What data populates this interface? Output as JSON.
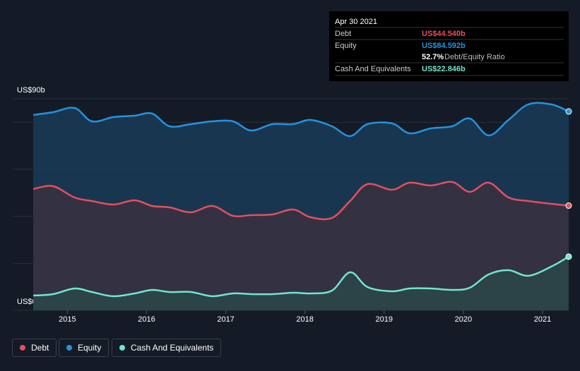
{
  "chart_data": {
    "type": "area",
    "x": [
      2014.57,
      2014.82,
      2015.09,
      2015.31,
      2015.58,
      2015.85,
      2016.07,
      2016.29,
      2016.56,
      2016.83,
      2017.09,
      2017.32,
      2017.59,
      2017.85,
      2018.07,
      2018.34,
      2018.57,
      2018.79,
      2019.1,
      2019.32,
      2019.59,
      2019.86,
      2020.08,
      2020.32,
      2020.57,
      2020.82,
      2021.11,
      2021.33
    ],
    "series": [
      {
        "name": "Equity",
        "color": "#2394df",
        "fill": "#1a3b58",
        "values": [
          83.1,
          84.3,
          86.1,
          80.4,
          82.2,
          82.8,
          83.7,
          78.3,
          79.2,
          80.4,
          80.4,
          76.5,
          79.2,
          79.2,
          81.0,
          78.3,
          74.1,
          79.2,
          79.5,
          75.3,
          77.4,
          78.3,
          81.6,
          74.4,
          81.0,
          87.6,
          87.6,
          84.592
        ]
      },
      {
        "name": "Debt",
        "color": "#e64f5e",
        "fill": "#3a3040",
        "values": [
          51.6,
          52.8,
          48.0,
          46.5,
          45.0,
          46.8,
          44.4,
          43.8,
          41.7,
          44.4,
          40.2,
          40.5,
          40.8,
          42.9,
          39.6,
          39.3,
          46.5,
          53.7,
          51.3,
          54.3,
          53.1,
          54.6,
          50.4,
          54.3,
          48.0,
          46.5,
          45.3,
          44.54
        ]
      },
      {
        "name": "Cash And Equivalents",
        "color": "#6ee7cf",
        "fill": "#2c4749",
        "values": [
          6.3,
          6.9,
          9.3,
          7.8,
          6.0,
          7.2,
          8.7,
          7.8,
          7.8,
          6.0,
          7.2,
          6.9,
          6.9,
          7.5,
          7.2,
          8.4,
          16.2,
          9.9,
          8.1,
          9.3,
          9.3,
          8.7,
          9.6,
          15.3,
          17.1,
          14.7,
          18.6,
          22.846
        ]
      }
    ],
    "legend_order": [
      1,
      0,
      2
    ],
    "xlim": [
      2014.31,
      2021.33
    ],
    "xticks": [
      2015,
      2016,
      2017,
      2018,
      2019,
      2020,
      2021
    ],
    "ylim": [
      0,
      90
    ],
    "yticks": [
      {
        "value": 0,
        "label": "US$0"
      },
      {
        "value": 90,
        "label": "US$90b"
      }
    ],
    "gridlines": [
      20,
      40,
      60,
      80,
      90
    ],
    "tooltip": {
      "date": "Apr 30 2021",
      "rows": [
        {
          "label": "Debt",
          "value_label": "US$44.540b",
          "color": "#e64f5e"
        },
        {
          "label": "Equity",
          "value_label": "US$84.592b",
          "color": "#2394df"
        },
        {
          "label": "Cash And Equivalents",
          "value_label": "US$22.846b",
          "color": "#6ee7cf"
        }
      ],
      "ratio": "52.7%",
      "ratio_label": "Debt/Equity Ratio"
    }
  }
}
